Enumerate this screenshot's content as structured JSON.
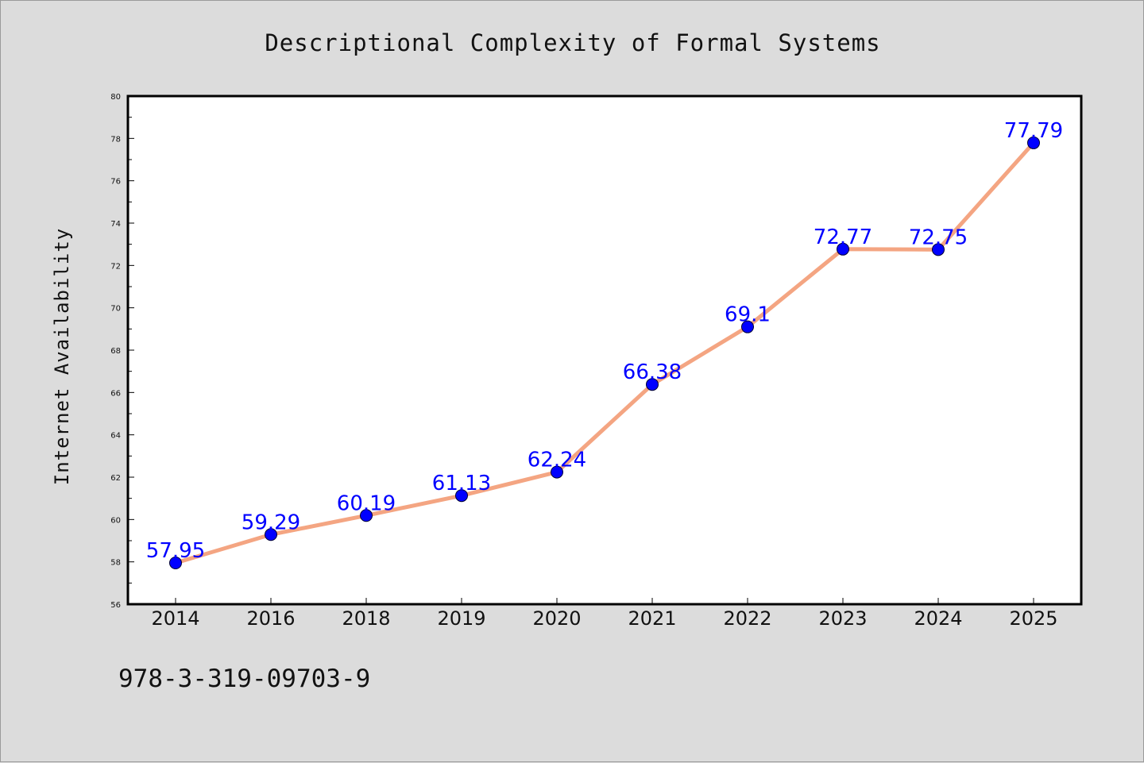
{
  "chart_data": {
    "type": "line",
    "title": "Descriptional Complexity of Formal Systems",
    "xlabel": "",
    "ylabel": "Internet Availability",
    "categories": [
      "2014",
      "2016",
      "2018",
      "2019",
      "2020",
      "2021",
      "2022",
      "2023",
      "2024",
      "2025"
    ],
    "series": [
      {
        "values": [
          57.95,
          59.29,
          60.19,
          61.13,
          62.24,
          66.38,
          69.1,
          72.77,
          72.75,
          77.79
        ],
        "labels": [
          "57.95",
          "59.29",
          "60.19",
          "61.13",
          "62.24",
          "66.38",
          "69.1",
          "72.77",
          "72.75",
          "77.79"
        ],
        "line_color": "#f4a582",
        "marker_color": "#0000ff"
      }
    ],
    "ylim": [
      56,
      80
    ],
    "yticks": [
      "56",
      "58",
      "60",
      "62",
      "64",
      "66",
      "68",
      "70",
      "72",
      "74",
      "76",
      "78",
      "80"
    ],
    "grid": false,
    "legend": "none",
    "label_color": "#0000ff",
    "plot_background": "#ffffff",
    "figure_background": "#dcdcdc"
  },
  "footer": {
    "text": "978-3-319-09703-9"
  }
}
